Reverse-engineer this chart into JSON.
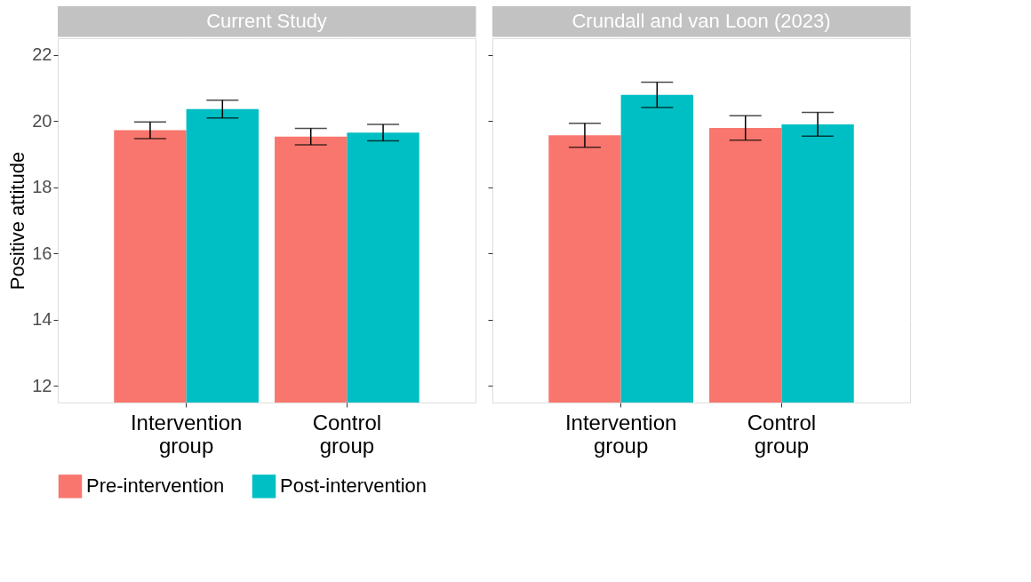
{
  "chart_data": [
    {
      "type": "bar",
      "title": "Current Study",
      "ylabel": "Positive attitude",
      "categories": [
        "Intervention group",
        "Control group"
      ],
      "ylim": [
        11.5,
        22.5
      ],
      "yticks": [
        12,
        14,
        16,
        18,
        20,
        22
      ],
      "grid": true,
      "legend": "bottom",
      "series": [
        {
          "name": "Pre-intervention",
          "color": "#f8766d",
          "values": [
            19.72,
            19.53
          ],
          "errors": [
            0.25,
            0.25
          ]
        },
        {
          "name": "Post-intervention",
          "color": "#00bfc4",
          "values": [
            20.36,
            19.65
          ],
          "errors": [
            0.27,
            0.25
          ]
        }
      ]
    },
    {
      "type": "bar",
      "title": "Crundall and van Loon (2023)",
      "categories": [
        "Intervention group",
        "Control group"
      ],
      "ylim": [
        11.5,
        22.5
      ],
      "yticks": [
        12,
        14,
        16,
        18,
        20,
        22
      ],
      "grid": true,
      "legend": "bottom",
      "tick_labels": "x",
      "series": [
        {
          "name": "Pre-intervention",
          "color": "#f8766d",
          "values": [
            19.57,
            19.79
          ],
          "errors": [
            0.36,
            0.37
          ]
        },
        {
          "name": "Post-intervention",
          "color": "#00bfc4",
          "values": [
            20.79,
            19.9
          ],
          "errors": [
            0.38,
            0.36
          ]
        }
      ]
    }
  ]
}
